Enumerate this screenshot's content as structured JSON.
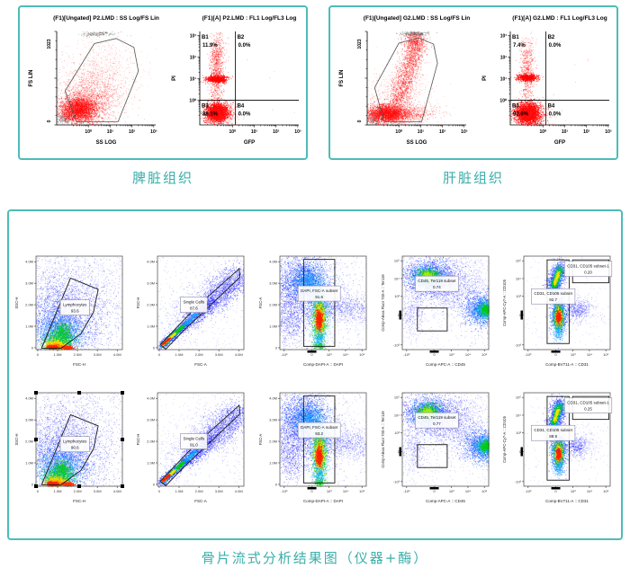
{
  "colors": {
    "panel_border": "#4dbcb8",
    "caption_text": "#3bafaa",
    "scatter_red": "#ff1414",
    "density_base_blue": "#1515ff"
  },
  "captions": {
    "spleen": "脾脏组织",
    "liver": "肝脏组织",
    "bottom": "骨片流式分析结果图（仪器+酶）"
  },
  "chart_data": [
    {
      "id": "spleen-fs-ss",
      "type": "scatter",
      "kind": "top-scatter",
      "variant": "spleen",
      "title": "(F1)[Ungated] P2.LMD : SS Log/FS Lin",
      "xlabel": "SS LOG",
      "ylabel": "FS LIN",
      "xticks": [
        "10⁰",
        "10¹",
        "10²",
        "10³"
      ],
      "yticks": [
        "0",
        "1023"
      ]
    },
    {
      "id": "spleen-pi-gfp",
      "type": "scatter",
      "kind": "top-quad",
      "variant": "spleen",
      "title": "(F1)[A] P2.LMD : FL1 Log/FL3 Log",
      "xlabel": "GFP",
      "ylabel": "PI",
      "xticks": [
        "10⁰",
        "10¹",
        "10²",
        "10³"
      ],
      "yticks": [
        "10³",
        "10²",
        "10¹",
        "10⁰"
      ],
      "quadrants": [
        {
          "name": "B1",
          "value": "11.9%"
        },
        {
          "name": "B2",
          "value": "0.0%"
        },
        {
          "name": "B3",
          "value": "88.1%"
        },
        {
          "name": "B4",
          "value": "0.0%"
        }
      ]
    },
    {
      "id": "liver-fs-ss",
      "type": "scatter",
      "kind": "top-scatter",
      "variant": "liver",
      "title": "(F1)[Ungated] G2.LMD : SS Log/FS Lin",
      "xlabel": "SS LOG",
      "ylabel": "FS LIN",
      "xticks": [
        "10⁰",
        "10¹",
        "10²",
        "10³"
      ],
      "yticks": [
        "0",
        "1023"
      ]
    },
    {
      "id": "liver-pi-gfp",
      "type": "scatter",
      "kind": "top-quad",
      "variant": "liver",
      "title": "(F1)[A] G2.LMD : FL1 Log/FL3 Log",
      "xlabel": "GFP",
      "ylabel": "PI",
      "xticks": [
        "10⁰",
        "10¹",
        "10²",
        "10³"
      ],
      "yticks": [
        "10³",
        "10²",
        "10¹",
        "10⁰"
      ],
      "quadrants": [
        {
          "name": "B1",
          "value": "7.4%"
        },
        {
          "name": "B2",
          "value": "0.0%"
        },
        {
          "name": "B3",
          "value": "92.6%"
        },
        {
          "name": "B4",
          "value": "0.0%"
        }
      ]
    },
    {
      "id": "bone-r1-lymphocytes",
      "type": "density",
      "kind": "density",
      "style": "lymph",
      "xlabel": "FSC-H",
      "ylabel": "SSC-H",
      "xticks": [
        "0",
        "1.0M",
        "2.0M",
        "3.0M",
        "4.0M"
      ],
      "yticks": [
        "0",
        "1.0M",
        "2.0M",
        "3.0M",
        "4.0M"
      ],
      "gates": [
        {
          "label": "Lymphocytes",
          "value": "93.6"
        }
      ]
    },
    {
      "id": "bone-r1-single-cells",
      "type": "density",
      "kind": "density",
      "style": "singlets",
      "xlabel": "FSC-A",
      "ylabel": "FSC-H",
      "xticks": [
        "0",
        "1.0M",
        "2.0M",
        "3.0M",
        "4.0M"
      ],
      "yticks": [
        "0",
        "1.0M",
        "2.0M",
        "3.0M",
        "4.0M"
      ],
      "gates": [
        {
          "label": "Single Cells",
          "value": "87.6"
        }
      ]
    },
    {
      "id": "bone-r1-dapi",
      "type": "density",
      "kind": "density",
      "style": "dapi",
      "xlabel": "Comp-DAPI-A :: DAPI",
      "ylabel": "FSC-A",
      "xticks": [
        "-10³",
        "0",
        "10³",
        "10⁴",
        "10⁵"
      ],
      "yticks": [
        "0",
        "1.0M",
        "2.0M",
        "3.0M",
        "4.0M"
      ],
      "gates": [
        {
          "label": "DAPI, FSC-A subset",
          "value": "91.6"
        }
      ]
    },
    {
      "id": "bone-r1-cd45-ter119",
      "type": "density",
      "kind": "density",
      "style": "cd45",
      "xlabel": "Comp-APC-A :: CD45",
      "ylabel": "Comp-Alexa Fluor 700-A :: Ter119",
      "xticks": [
        "-10³",
        "0",
        "10³",
        "10⁴",
        "10⁵"
      ],
      "yticks": [
        "-10³",
        "0",
        "10³",
        "10⁴",
        "10⁵"
      ],
      "gates": [
        {
          "label": "CD45, Ter119 subset",
          "value": "0.74"
        }
      ]
    },
    {
      "id": "bone-r1-cd31-cd105",
      "type": "density",
      "kind": "density",
      "style": "cd31",
      "xlabel": "Comp-BV711-A :: CD31",
      "ylabel": "Comp-APC-Cy7-A :: CD105",
      "xticks": [
        "-10³",
        "0",
        "10³",
        "10⁴",
        "10⁵"
      ],
      "yticks": [
        "-10³",
        "0",
        "10³",
        "10⁴",
        "10⁵"
      ],
      "gates": [
        {
          "label": "CD31, CD105 subset",
          "value": "92.7"
        },
        {
          "label": "CD31, CD105 subset-1",
          "value": "0.20"
        }
      ]
    },
    {
      "id": "bone-r2-lymphocytes",
      "type": "density",
      "kind": "density",
      "style": "lymph",
      "selected": true,
      "xlabel": "FSC-H",
      "ylabel": "SSC-H",
      "xticks": [
        "0",
        "1.0M",
        "2.0M",
        "3.0M",
        "4.0M"
      ],
      "yticks": [
        "0",
        "1.0M",
        "2.0M",
        "3.0M",
        "4.0M"
      ],
      "gates": [
        {
          "label": "Lymphocytes",
          "value": "90.6"
        }
      ]
    },
    {
      "id": "bone-r2-single-cells",
      "type": "density",
      "kind": "density",
      "style": "singlets",
      "xlabel": "FSC-A",
      "ylabel": "FSC-H",
      "xticks": [
        "0",
        "1.0M",
        "2.0M",
        "3.0M",
        "4.0M"
      ],
      "yticks": [
        "0",
        "1.0M",
        "2.0M",
        "3.0M",
        "4.0M"
      ],
      "gates": [
        {
          "label": "Single Cells",
          "value": "91.0"
        }
      ]
    },
    {
      "id": "bone-r2-dapi",
      "type": "density",
      "kind": "density",
      "style": "dapi",
      "xlabel": "Comp-DAPI-A :: DAPI",
      "ylabel": "FSC-A",
      "xticks": [
        "-10³",
        "0",
        "10³",
        "10⁴",
        "10⁵"
      ],
      "yticks": [
        "0",
        "1.0M",
        "2.0M",
        "3.0M",
        "4.0M"
      ],
      "gates": [
        {
          "label": "DAPI, FSC-A subset",
          "value": "93.2"
        }
      ]
    },
    {
      "id": "bone-r2-cd45-ter119",
      "type": "density",
      "kind": "density",
      "style": "cd45",
      "xlabel": "Comp-APC-A :: CD45",
      "ylabel": "Comp-Alexa Fluor 700-A :: Ter119",
      "xticks": [
        "-10³",
        "0",
        "10³",
        "10⁴",
        "10⁵"
      ],
      "yticks": [
        "-10³",
        "0",
        "10³",
        "10⁴",
        "10⁵"
      ],
      "gates": [
        {
          "label": "CD45, Ter119 subset",
          "value": "0.77"
        }
      ]
    },
    {
      "id": "bone-r2-cd31-cd105",
      "type": "density",
      "kind": "density",
      "style": "cd31",
      "xlabel": "Comp-BV711-A :: CD31",
      "ylabel": "Comp-APC-Cy7-A :: CD105",
      "xticks": [
        "-10³",
        "0",
        "10³",
        "10⁴",
        "10⁵"
      ],
      "yticks": [
        "-10³",
        "0",
        "10³",
        "10⁴",
        "10⁵"
      ],
      "gates": [
        {
          "label": "CD31, CD105 subset",
          "value": "88.9"
        },
        {
          "label": "CD31, CD105 subset-1",
          "value": "0.25"
        }
      ]
    }
  ]
}
